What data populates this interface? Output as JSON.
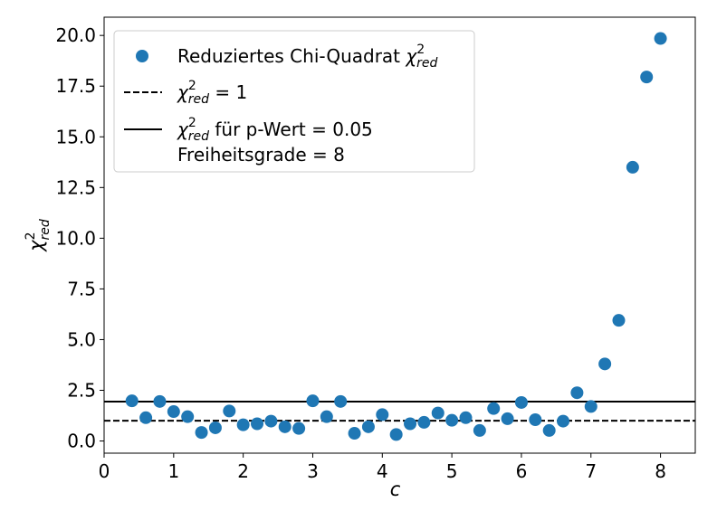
{
  "chart_data": {
    "type": "scatter",
    "title": "",
    "xlabel": "c",
    "ylabel": "χ²_red",
    "xlim": [
      0,
      8.5
    ],
    "ylim": [
      -0.6,
      20.9
    ],
    "xticks": [
      0,
      1,
      2,
      3,
      4,
      5,
      6,
      7,
      8
    ],
    "yticks": [
      0.0,
      2.5,
      5.0,
      7.5,
      10.0,
      12.5,
      15.0,
      17.5,
      20.0
    ],
    "xtick_labels": [
      "0",
      "1",
      "2",
      "3",
      "4",
      "5",
      "6",
      "7",
      "8"
    ],
    "ytick_labels": [
      "0.0",
      "2.5",
      "5.0",
      "7.5",
      "10.0",
      "12.5",
      "15.0",
      "17.5",
      "20.0"
    ],
    "grid": false,
    "legend_position": "top-left",
    "color": "#1f77b4",
    "series": [
      {
        "name": "Reduziertes Chi-Quadrat χ²_red",
        "type": "scatter",
        "x": [
          0.4,
          0.6,
          0.8,
          1.0,
          1.2,
          1.4,
          1.6,
          1.8,
          2.0,
          2.2,
          2.4,
          2.6,
          2.8,
          3.0,
          3.2,
          3.4,
          3.6,
          3.8,
          4.0,
          4.2,
          4.4,
          4.6,
          4.8,
          5.0,
          5.2,
          5.4,
          5.6,
          5.8,
          6.0,
          6.2,
          6.4,
          6.6,
          6.8,
          7.0,
          7.2,
          7.4,
          7.6,
          7.8,
          8.0
        ],
        "y": [
          1.98,
          1.15,
          1.95,
          1.45,
          1.2,
          0.42,
          0.65,
          1.48,
          0.8,
          0.85,
          0.98,
          0.7,
          0.62,
          1.98,
          1.2,
          1.95,
          0.38,
          0.7,
          1.3,
          0.32,
          0.85,
          0.92,
          1.38,
          1.02,
          1.15,
          0.52,
          1.6,
          1.1,
          1.9,
          1.05,
          0.52,
          0.98,
          2.38,
          1.7,
          3.8,
          5.95,
          13.5,
          17.95,
          19.85
        ]
      },
      {
        "name": "χ²_red = 1",
        "type": "hline",
        "y": 1.0,
        "style": "dashed"
      },
      {
        "name": "χ²_red für p-Wert = 0.05 Freiheitsgrade = 8",
        "type": "hline",
        "y": 1.94,
        "style": "solid"
      }
    ],
    "legend": [
      {
        "marker": "circle",
        "prefix": "Reduziertes Chi-Quadrat ",
        "math_symbol": "χ",
        "sup": "2",
        "sub": "red",
        "suffix": ""
      },
      {
        "marker": "dashed",
        "prefix": "",
        "math_symbol": "χ",
        "sup": "2",
        "sub": "red",
        "suffix": " = 1"
      },
      {
        "marker": "solid",
        "prefix": "",
        "math_symbol": "χ",
        "sup": "2",
        "sub": "red",
        "suffix": " für p-Wert = 0.05",
        "line2": "Freiheitsgrade = 8"
      }
    ],
    "ylabel_parts": {
      "symbol": "χ",
      "sup": "2",
      "sub": "red"
    }
  }
}
